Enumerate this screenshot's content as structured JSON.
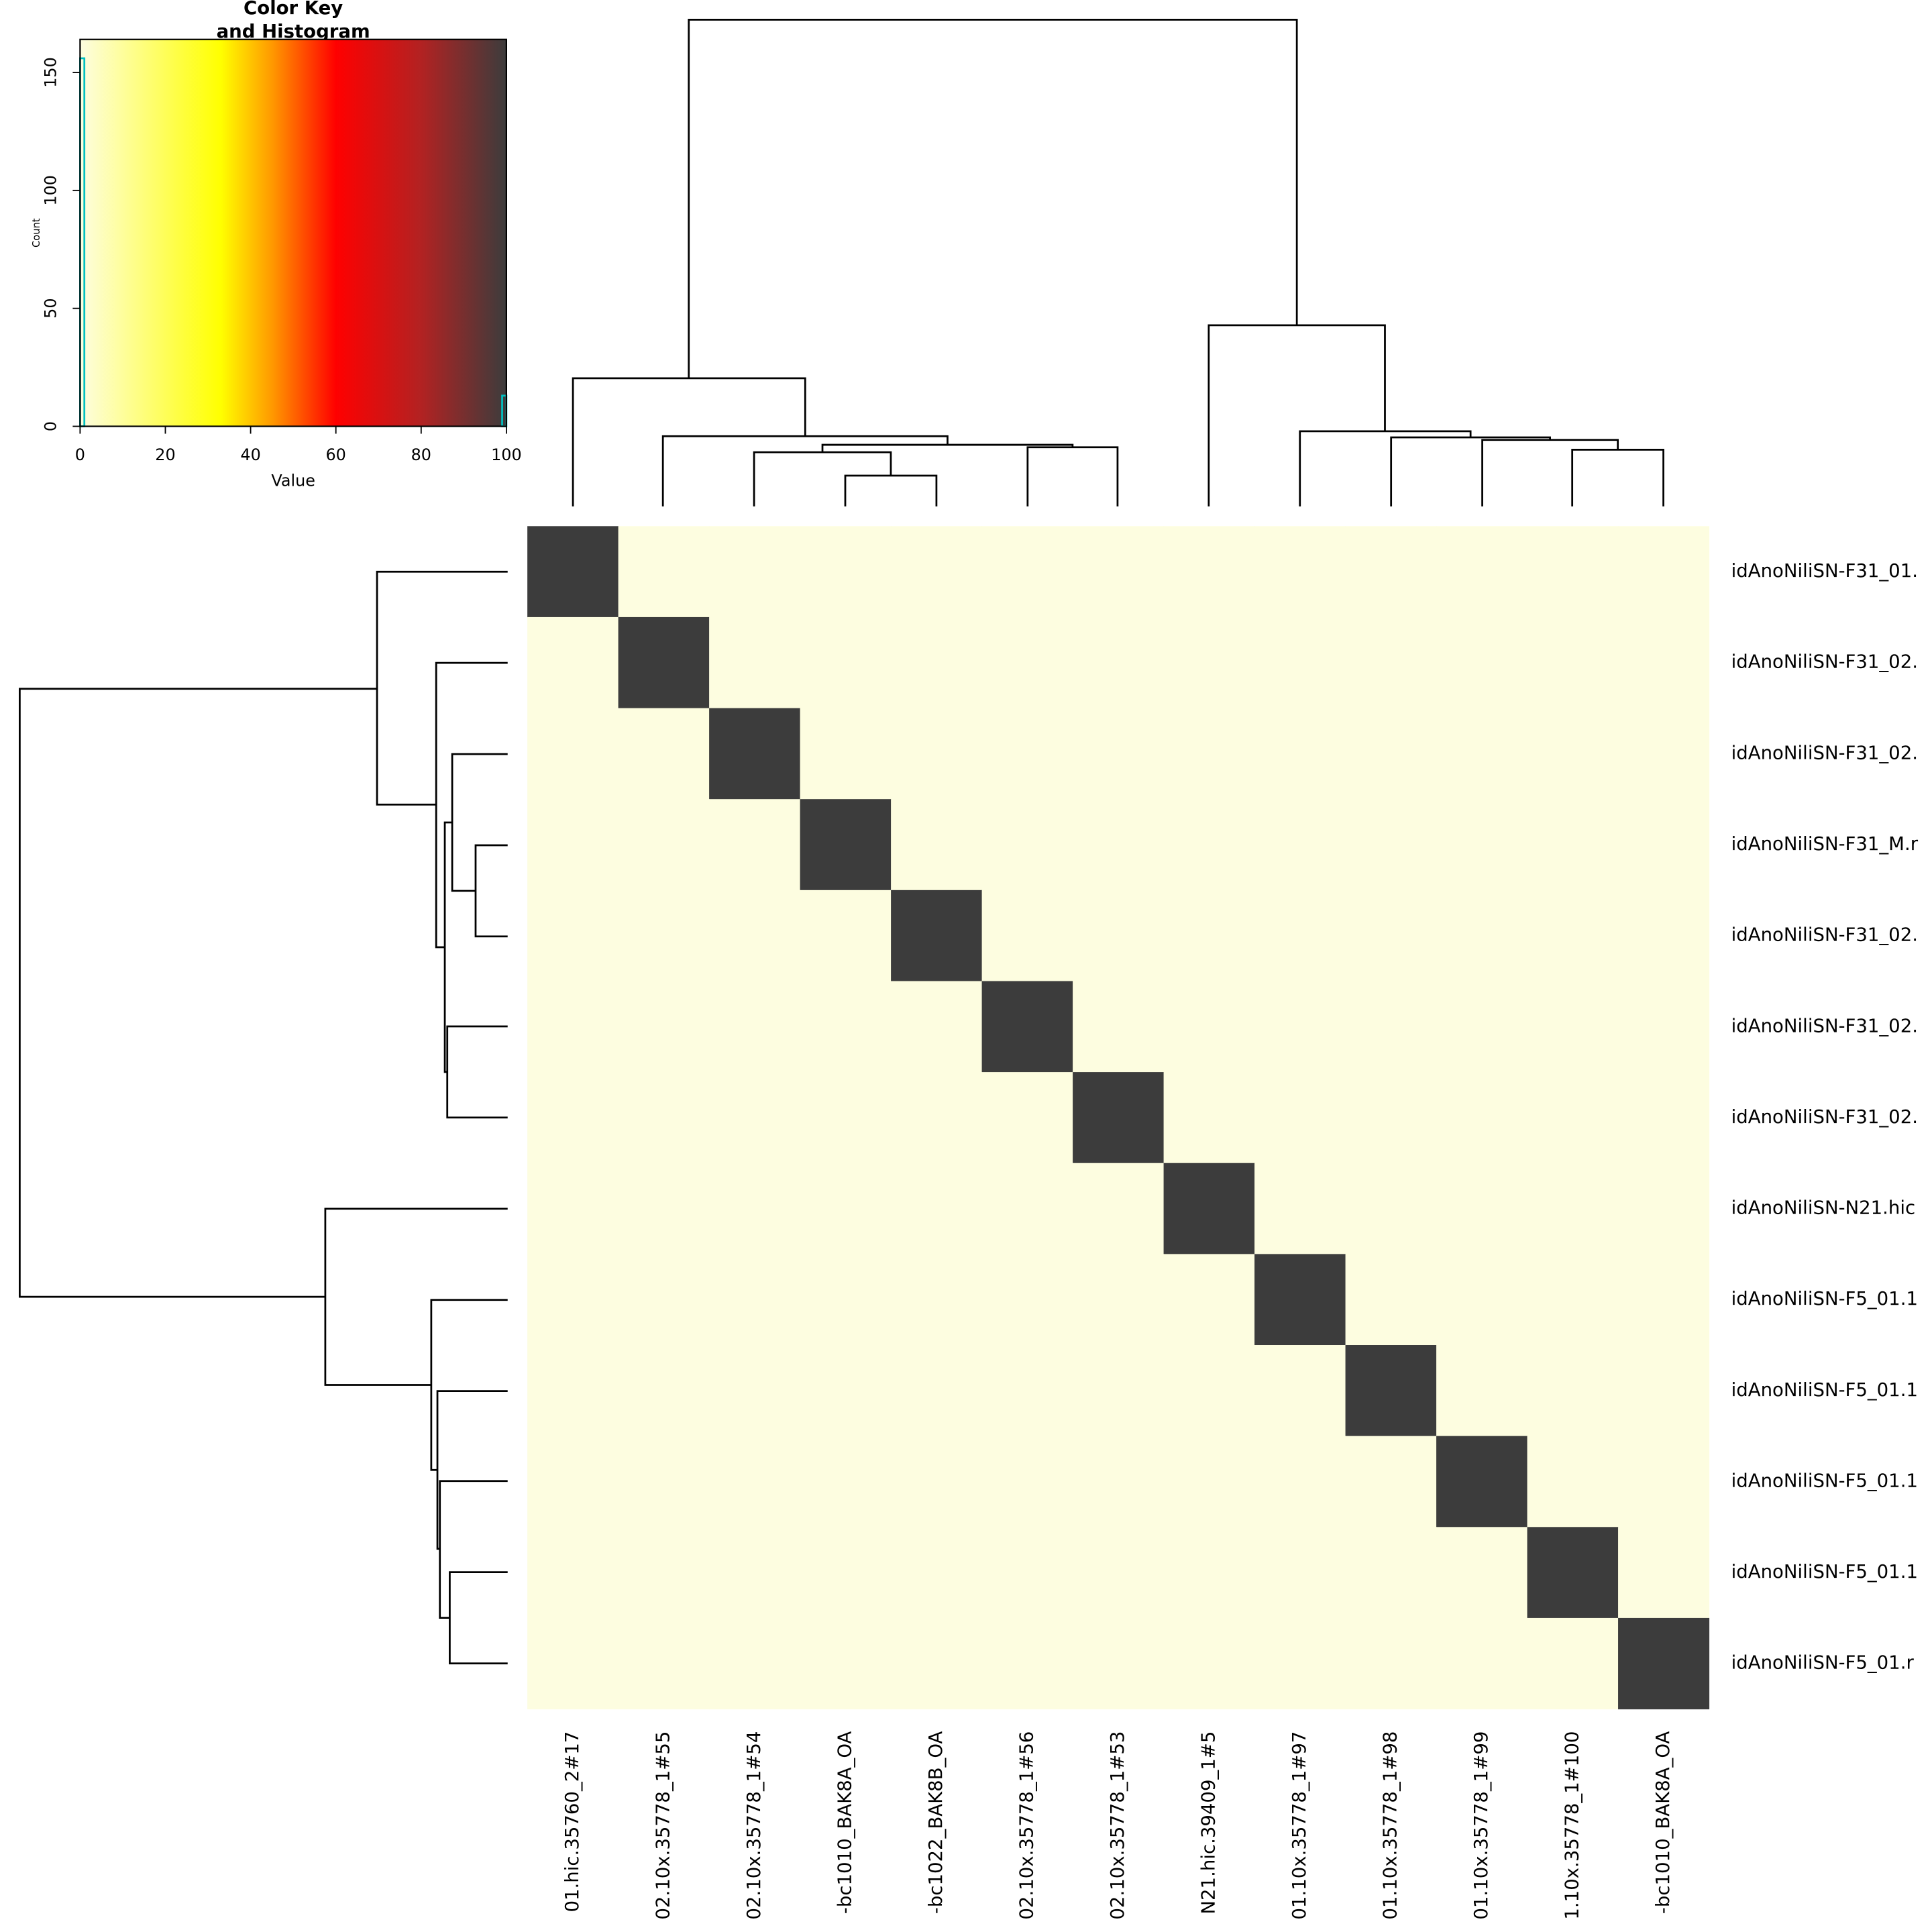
{
  "chart_data": [
    {
      "type": "heatmap",
      "rows": [
        "idAnoNiliSN-F31_01.",
        "idAnoNiliSN-F31_02.",
        "idAnoNiliSN-F31_02.",
        "idAnoNiliSN-F31_M.r",
        "idAnoNiliSN-F31_02.",
        "idAnoNiliSN-F31_02.",
        "idAnoNiliSN-F31_02.",
        "idAnoNiliSN-N21.hic",
        "idAnoNiliSN-F5_01.1",
        "idAnoNiliSN-F5_01.1",
        "idAnoNiliSN-F5_01.1",
        "idAnoNiliSN-F5_01.1",
        "idAnoNiliSN-F5_01.r"
      ],
      "columns": [
        "01.hic.35760_2#17",
        "02.10x.35778_1#55",
        "02.10x.35778_1#54",
        "-bc1010_BAK8A_OA",
        "-bc1022_BAK8B_OA",
        "02.10x.35778_1#56",
        "02.10x.35778_1#53",
        "N21.hic.39409_1#5",
        "01.10x.35778_1#97",
        "01.10x.35778_1#98",
        "01.10x.35778_1#99",
        "1.10x.35778_1#100",
        "-bc1010_BAK8A_OA"
      ],
      "values": [
        [
          100,
          0,
          0,
          0,
          0,
          0,
          0,
          0,
          0,
          0,
          0,
          0,
          0
        ],
        [
          0,
          100,
          0,
          0,
          0,
          0,
          0,
          0,
          0,
          0,
          0,
          0,
          0
        ],
        [
          0,
          0,
          100,
          0,
          0,
          0,
          0,
          0,
          0,
          0,
          0,
          0,
          0
        ],
        [
          0,
          0,
          0,
          100,
          0,
          0,
          0,
          0,
          0,
          0,
          0,
          0,
          0
        ],
        [
          0,
          0,
          0,
          0,
          100,
          0,
          0,
          0,
          0,
          0,
          0,
          0,
          0
        ],
        [
          0,
          0,
          0,
          0,
          0,
          100,
          0,
          0,
          0,
          0,
          0,
          0,
          0
        ],
        [
          0,
          0,
          0,
          0,
          0,
          0,
          100,
          0,
          0,
          0,
          0,
          0,
          0
        ],
        [
          0,
          0,
          0,
          0,
          0,
          0,
          0,
          100,
          0,
          0,
          0,
          0,
          0
        ],
        [
          0,
          0,
          0,
          0,
          0,
          0,
          0,
          0,
          100,
          0,
          0,
          0,
          0
        ],
        [
          0,
          0,
          0,
          0,
          0,
          0,
          0,
          0,
          0,
          100,
          0,
          0,
          0
        ],
        [
          0,
          0,
          0,
          0,
          0,
          0,
          0,
          0,
          0,
          0,
          100,
          0,
          0
        ],
        [
          0,
          0,
          0,
          0,
          0,
          0,
          0,
          0,
          0,
          0,
          0,
          100,
          0
        ],
        [
          0,
          0,
          0,
          0,
          0,
          0,
          0,
          0,
          0,
          0,
          0,
          0,
          100
        ]
      ],
      "zlim": [
        0,
        100
      ],
      "colorscale": [
        [
          0,
          "#fdfde0"
        ],
        [
          33,
          "#ffff00"
        ],
        [
          45,
          "#ff9900"
        ],
        [
          60,
          "#ff0000"
        ],
        [
          80,
          "#b22222"
        ],
        [
          100,
          "#3c3c3c"
        ]
      ]
    },
    {
      "type": "histogram",
      "title": [
        "Color Key",
        "and Histogram"
      ],
      "x_label": "Value",
      "y_label": "Count",
      "bins": [
        0,
        1,
        99,
        100
      ],
      "counts": [
        156,
        0,
        13
      ],
      "color": "#00c0c0",
      "xlim": [
        0,
        100
      ],
      "xticks": [
        0,
        20,
        40,
        60,
        80,
        100
      ],
      "ylim": [
        0,
        164
      ],
      "yticks": [
        0,
        50,
        100,
        150
      ]
    }
  ]
}
